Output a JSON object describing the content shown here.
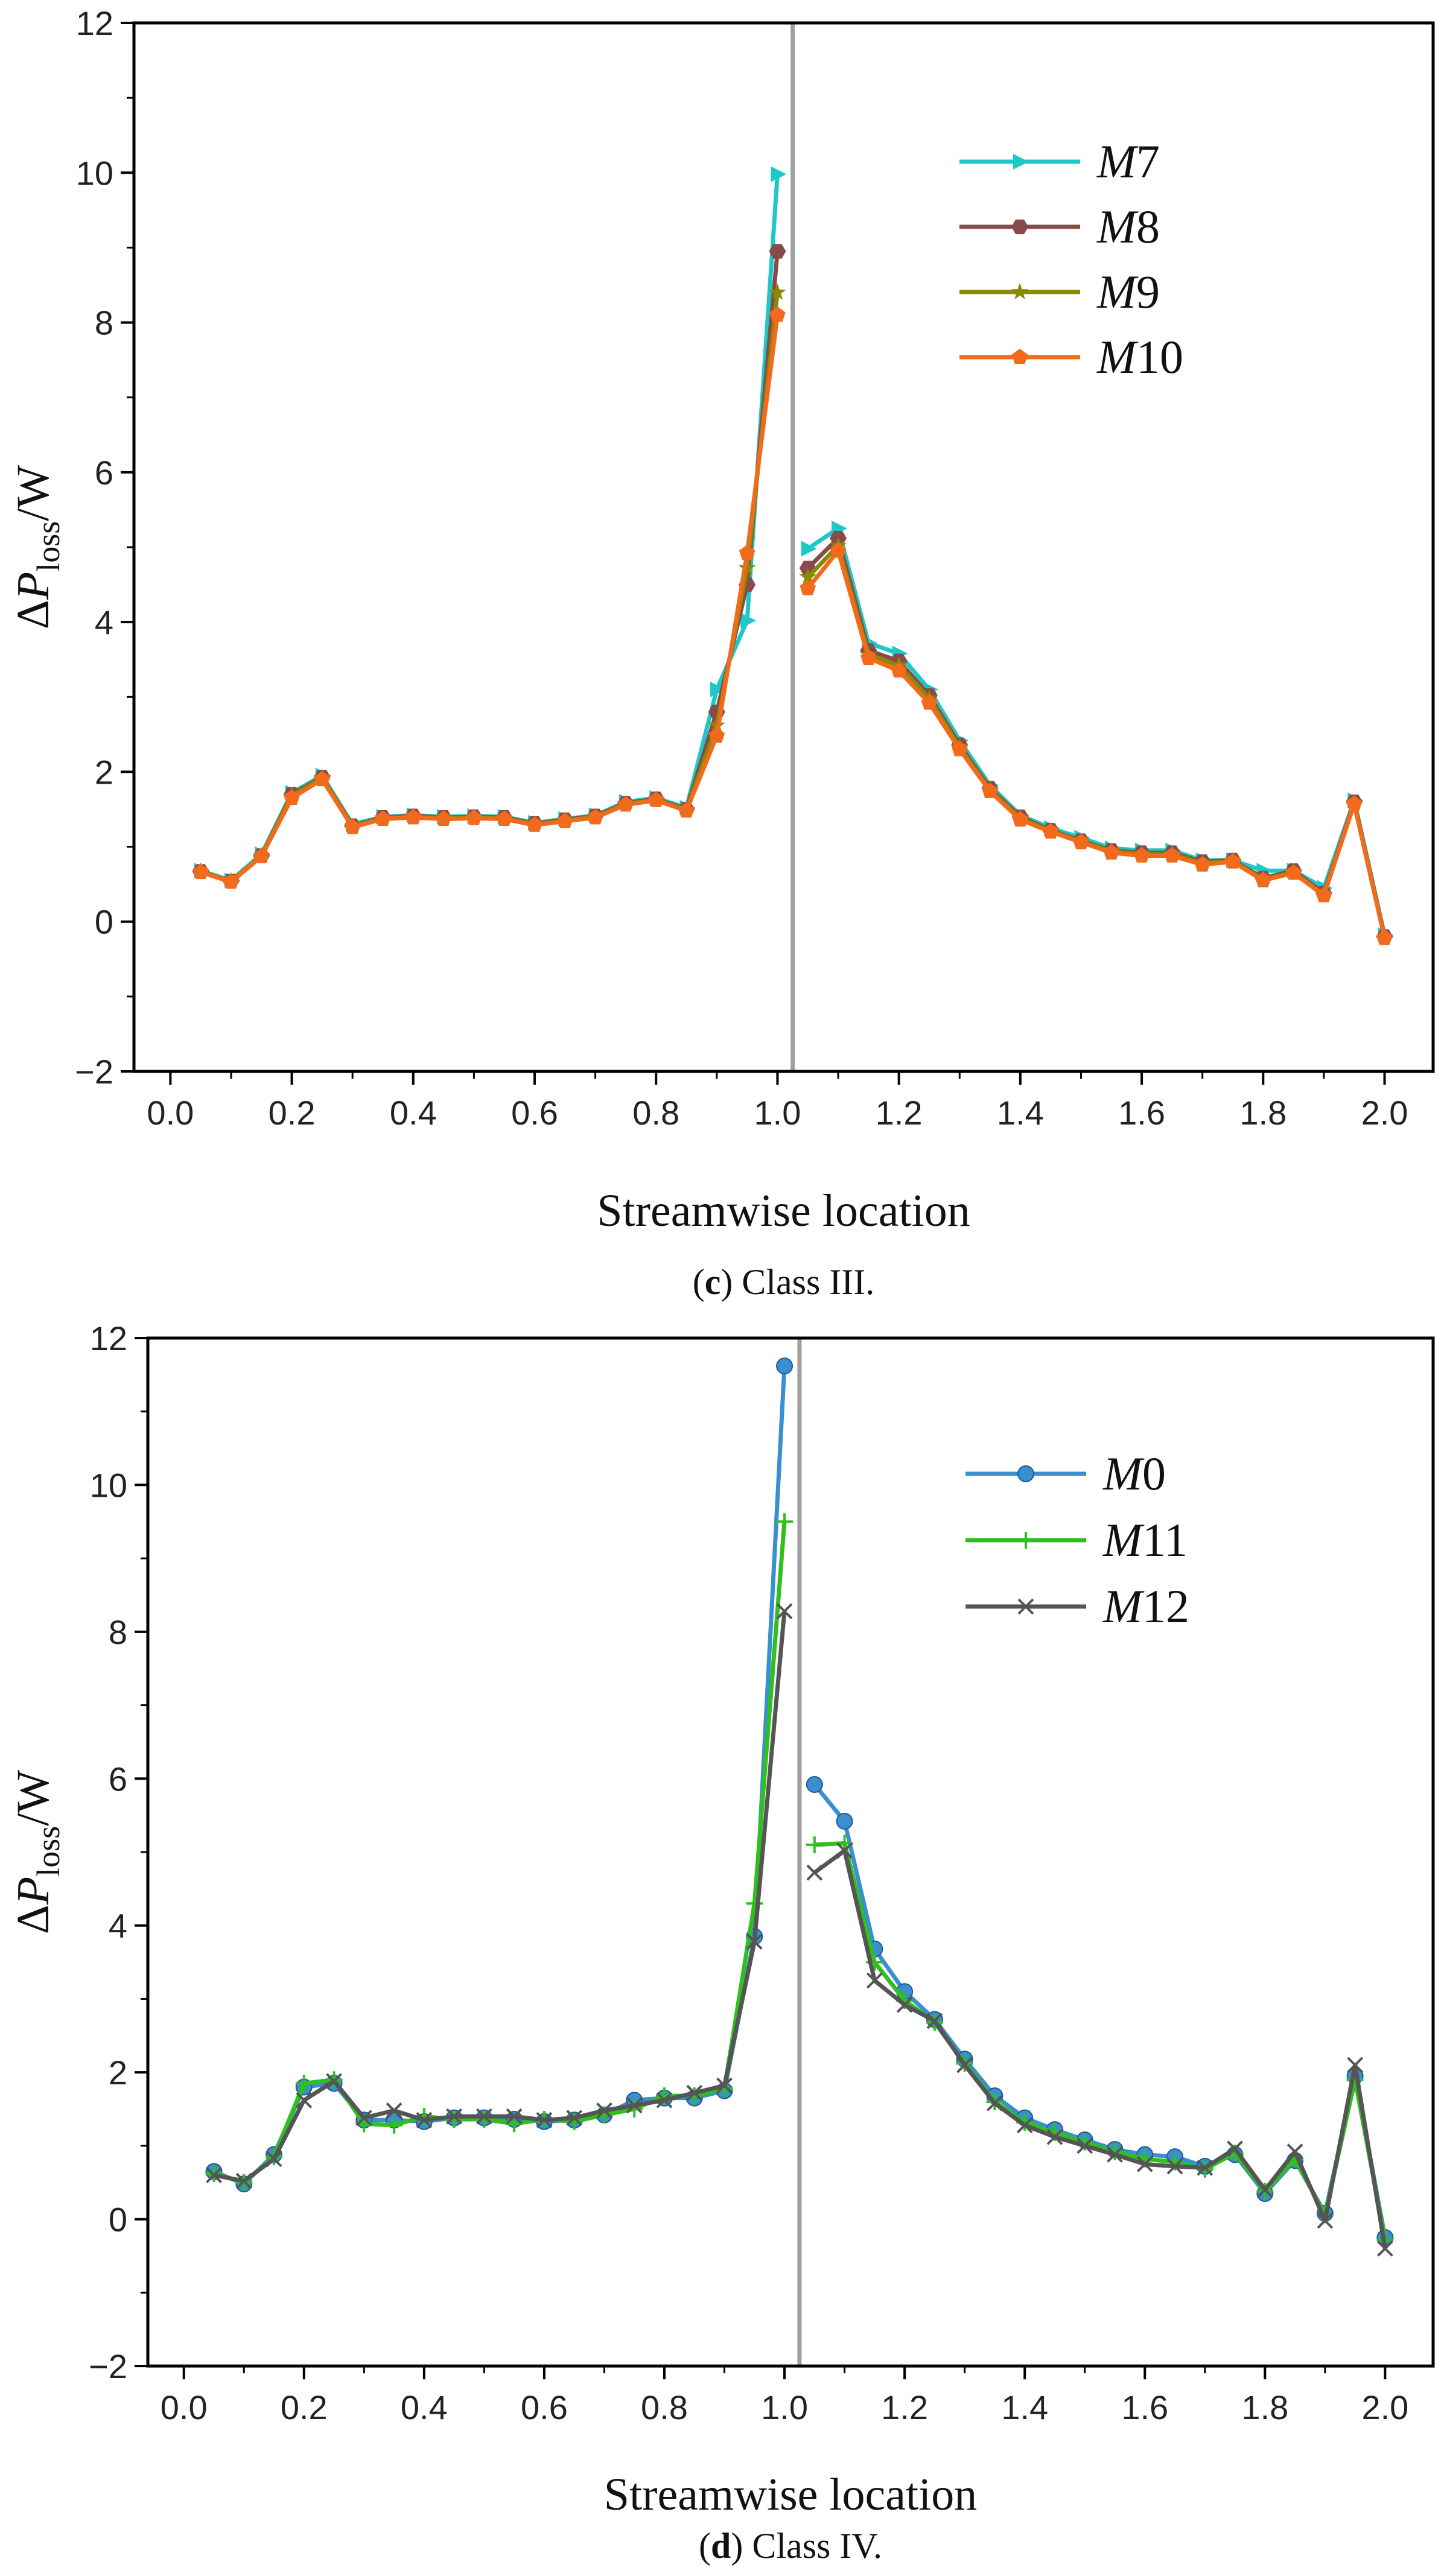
{
  "chart_data": [
    {
      "panel": "c",
      "type": "line",
      "caption": {
        "letter": "c",
        "text": " Class III."
      },
      "xlabel": "Streamwise location",
      "ylabel": {
        "main": "ΔP",
        "sub": "loss",
        "tail": "/W"
      },
      "xlim": [
        -0.06,
        2.08
      ],
      "ylim": [
        -2,
        12
      ],
      "xticks": [
        0.0,
        0.2,
        0.4,
        0.6,
        0.8,
        1.0,
        1.2,
        1.4,
        1.6,
        1.8,
        2.0
      ],
      "xtick_labels": [
        "0.0",
        "0.2",
        "0.4",
        "0.6",
        "0.8",
        "1.0",
        "1.2",
        "1.4",
        "1.6",
        "1.8",
        "2.0"
      ],
      "yticks": [
        -2,
        0,
        2,
        4,
        6,
        8,
        10,
        12
      ],
      "ytick_labels": [
        "−2",
        "0",
        "2",
        "4",
        "6",
        "8",
        "10",
        "12"
      ],
      "vline": 1.025,
      "x": [
        0.05,
        0.1,
        0.15,
        0.2,
        0.25,
        0.3,
        0.35,
        0.4,
        0.45,
        0.5,
        0.55,
        0.6,
        0.65,
        0.7,
        0.75,
        0.8,
        0.85,
        0.9,
        0.95,
        1.0,
        1.05,
        1.1,
        1.15,
        1.2,
        1.25,
        1.3,
        1.35,
        1.4,
        1.45,
        1.5,
        1.55,
        1.6,
        1.65,
        1.7,
        1.75,
        1.8,
        1.85,
        1.9,
        1.95,
        2.0
      ],
      "series": [
        {
          "name": "M7",
          "label_italic": "M",
          "label_num": "7",
          "color": "#1ec8c8",
          "marker": "triangle-right",
          "values": [
            0.68,
            0.55,
            0.9,
            1.72,
            1.95,
            1.3,
            1.4,
            1.42,
            1.4,
            1.41,
            1.4,
            1.32,
            1.37,
            1.42,
            1.6,
            1.65,
            1.52,
            3.1,
            4.02,
            9.98,
            4.98,
            5.25,
            3.72,
            3.58,
            3.1,
            2.42,
            1.82,
            1.42,
            1.25,
            1.12,
            0.98,
            0.95,
            0.95,
            0.82,
            0.82,
            0.68,
            0.68,
            0.45,
            1.62,
            -0.18
          ]
        },
        {
          "name": "M8",
          "label_italic": "M",
          "label_num": "8",
          "color": "#8b4a4a",
          "marker": "hexagon",
          "values": [
            0.67,
            0.54,
            0.88,
            1.7,
            1.93,
            1.28,
            1.39,
            1.41,
            1.39,
            1.4,
            1.39,
            1.31,
            1.36,
            1.41,
            1.58,
            1.64,
            1.5,
            2.8,
            4.5,
            8.95,
            4.72,
            5.12,
            3.62,
            3.48,
            3.02,
            2.36,
            1.78,
            1.4,
            1.22,
            1.08,
            0.95,
            0.92,
            0.92,
            0.8,
            0.82,
            0.58,
            0.68,
            0.38,
            1.6,
            -0.2
          ]
        },
        {
          "name": "M9",
          "label_italic": "M",
          "label_num": "9",
          "color": "#8a8a00",
          "marker": "star",
          "values": [
            0.67,
            0.54,
            0.88,
            1.68,
            1.92,
            1.27,
            1.38,
            1.4,
            1.38,
            1.39,
            1.38,
            1.3,
            1.35,
            1.4,
            1.57,
            1.63,
            1.49,
            2.62,
            4.72,
            8.4,
            4.6,
            5.02,
            3.56,
            3.42,
            2.98,
            2.33,
            1.76,
            1.38,
            1.21,
            1.07,
            0.94,
            0.9,
            0.9,
            0.78,
            0.81,
            0.56,
            0.66,
            0.36,
            1.58,
            -0.21
          ]
        },
        {
          "name": "M10",
          "label_italic": "M",
          "label_num": "10",
          "color": "#f26b1d",
          "marker": "pentagon",
          "values": [
            0.66,
            0.53,
            0.87,
            1.65,
            1.9,
            1.26,
            1.37,
            1.39,
            1.37,
            1.38,
            1.37,
            1.29,
            1.34,
            1.39,
            1.56,
            1.62,
            1.48,
            2.48,
            4.92,
            8.1,
            4.45,
            4.95,
            3.52,
            3.35,
            2.92,
            2.3,
            1.74,
            1.36,
            1.2,
            1.06,
            0.92,
            0.88,
            0.88,
            0.76,
            0.8,
            0.55,
            0.65,
            0.35,
            1.57,
            -0.22
          ]
        }
      ]
    },
    {
      "panel": "d",
      "type": "line",
      "caption": {
        "letter": "d",
        "text": " Class IV."
      },
      "xlabel": "Streamwise location",
      "ylabel": {
        "main": "ΔP",
        "sub": "loss",
        "tail": "/W"
      },
      "xlim": [
        -0.06,
        2.08
      ],
      "ylim": [
        -2,
        12
      ],
      "xticks": [
        0.0,
        0.2,
        0.4,
        0.6,
        0.8,
        1.0,
        1.2,
        1.4,
        1.6,
        1.8,
        2.0
      ],
      "xtick_labels": [
        "0.0",
        "0.2",
        "0.4",
        "0.6",
        "0.8",
        "1.0",
        "1.2",
        "1.4",
        "1.6",
        "1.8",
        "2.0"
      ],
      "yticks": [
        -2,
        0,
        2,
        4,
        6,
        8,
        10,
        12
      ],
      "ytick_labels": [
        "−2",
        "0",
        "2",
        "4",
        "6",
        "8",
        "10",
        "12"
      ],
      "vline": 1.025,
      "x": [
        0.05,
        0.1,
        0.15,
        0.2,
        0.25,
        0.3,
        0.35,
        0.4,
        0.45,
        0.5,
        0.55,
        0.6,
        0.65,
        0.7,
        0.75,
        0.8,
        0.85,
        0.9,
        0.95,
        1.0,
        1.05,
        1.1,
        1.15,
        1.2,
        1.25,
        1.3,
        1.35,
        1.4,
        1.45,
        1.5,
        1.55,
        1.6,
        1.65,
        1.7,
        1.75,
        1.8,
        1.85,
        1.9,
        1.95,
        2.0
      ],
      "series": [
        {
          "name": "M0",
          "label_italic": "M",
          "label_num": "0",
          "color": "#3a8fd0",
          "marker": "circle",
          "values": [
            0.65,
            0.48,
            0.88,
            1.8,
            1.85,
            1.35,
            1.35,
            1.33,
            1.38,
            1.38,
            1.36,
            1.33,
            1.35,
            1.42,
            1.62,
            1.65,
            1.65,
            1.75,
            3.85,
            11.62,
            5.92,
            5.42,
            3.68,
            3.1,
            2.72,
            2.18,
            1.68,
            1.38,
            1.22,
            1.08,
            0.95,
            0.88,
            0.85,
            0.72,
            0.88,
            0.35,
            0.8,
            0.08,
            1.95,
            -0.25
          ]
        },
        {
          "name": "M11",
          "label_italic": "M",
          "label_num": "11",
          "color": "#2fbf1f",
          "marker": "plus",
          "values": [
            0.62,
            0.5,
            0.85,
            1.85,
            1.9,
            1.3,
            1.28,
            1.4,
            1.36,
            1.36,
            1.3,
            1.36,
            1.33,
            1.42,
            1.5,
            1.68,
            1.68,
            1.78,
            4.3,
            9.5,
            5.1,
            5.12,
            3.5,
            2.98,
            2.68,
            2.12,
            1.6,
            1.32,
            1.18,
            1.05,
            0.92,
            0.82,
            0.78,
            0.68,
            0.9,
            0.38,
            0.82,
            0.06,
            1.9,
            -0.28
          ]
        },
        {
          "name": "M12",
          "label_italic": "M",
          "label_num": "12",
          "color": "#555555",
          "marker": "x",
          "values": [
            0.6,
            0.52,
            0.82,
            1.62,
            1.88,
            1.38,
            1.48,
            1.35,
            1.4,
            1.4,
            1.4,
            1.35,
            1.38,
            1.48,
            1.55,
            1.62,
            1.72,
            1.82,
            3.78,
            8.28,
            4.72,
            5.02,
            3.25,
            2.92,
            2.7,
            2.1,
            1.58,
            1.28,
            1.12,
            1.0,
            0.88,
            0.75,
            0.72,
            0.7,
            0.96,
            0.4,
            0.92,
            -0.02,
            2.1,
            -0.4
          ]
        }
      ]
    }
  ]
}
